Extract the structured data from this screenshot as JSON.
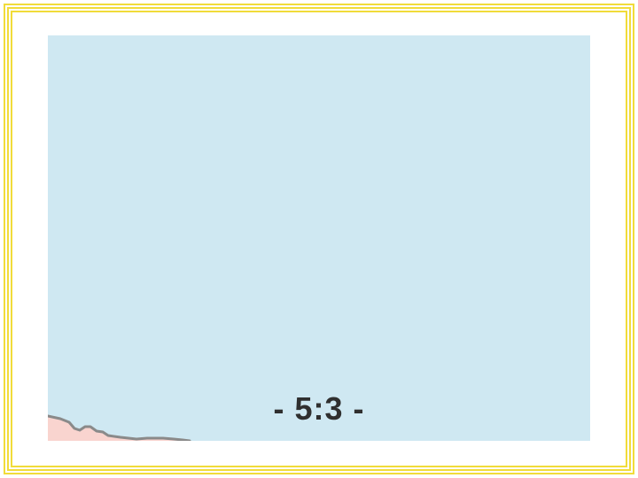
{
  "slide": {
    "caption": "- 5:3 -",
    "colors": {
      "frame": "#f1dc3a",
      "water": "#cfe8f2",
      "land": "#f9d4cf",
      "coast": "#8a8a8a",
      "text": "#2f2f2f"
    }
  }
}
